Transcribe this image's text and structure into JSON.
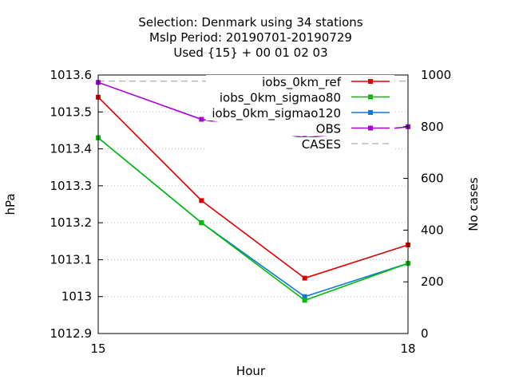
{
  "chart_data": {
    "type": "line",
    "title_lines": [
      "Selection: Denmark using    34 stations",
      "Mslp   Period: 20190701-20190729",
      "Used {15} + 00 01 02 03"
    ],
    "xlabel": "Hour",
    "ylabel": "hPa",
    "y2label": "No cases",
    "x": [
      15,
      16,
      17,
      18
    ],
    "xlim": [
      15,
      18
    ],
    "xticks": [
      15,
      18
    ],
    "ylim": [
      1012.9,
      1013.6
    ],
    "yticks": [
      1012.9,
      1013,
      1013.1,
      1013.2,
      1013.3,
      1013.4,
      1013.5,
      1013.6
    ],
    "y2lim": [
      0,
      1000
    ],
    "y2ticks": [
      0,
      200,
      400,
      600,
      800,
      1000
    ],
    "grid": true,
    "legend_position": "top-right",
    "series": [
      {
        "name": "iobs_0km_ref",
        "color": "#dd0000",
        "axis": "y",
        "values": [
          1013.54,
          1013.26,
          1013.05,
          1013.14
        ]
      },
      {
        "name": "iobs_0km_sigmao80",
        "color": "#00bb00",
        "axis": "y",
        "values": [
          1013.43,
          1013.2,
          1012.99,
          1013.09
        ]
      },
      {
        "name": "iobs_0km_sigmao120",
        "color": "#1177dd",
        "axis": "y",
        "values": [
          1013.43,
          1013.2,
          1013.0,
          1013.09
        ]
      },
      {
        "name": "OBS",
        "color": "#aa00dd",
        "axis": "y",
        "values": [
          1013.58,
          1013.48,
          1013.43,
          1013.46
        ]
      },
      {
        "name": "CASES",
        "color": "#999999",
        "axis": "y2",
        "dashed": true,
        "values": [
          976,
          976,
          976,
          976
        ]
      }
    ]
  }
}
